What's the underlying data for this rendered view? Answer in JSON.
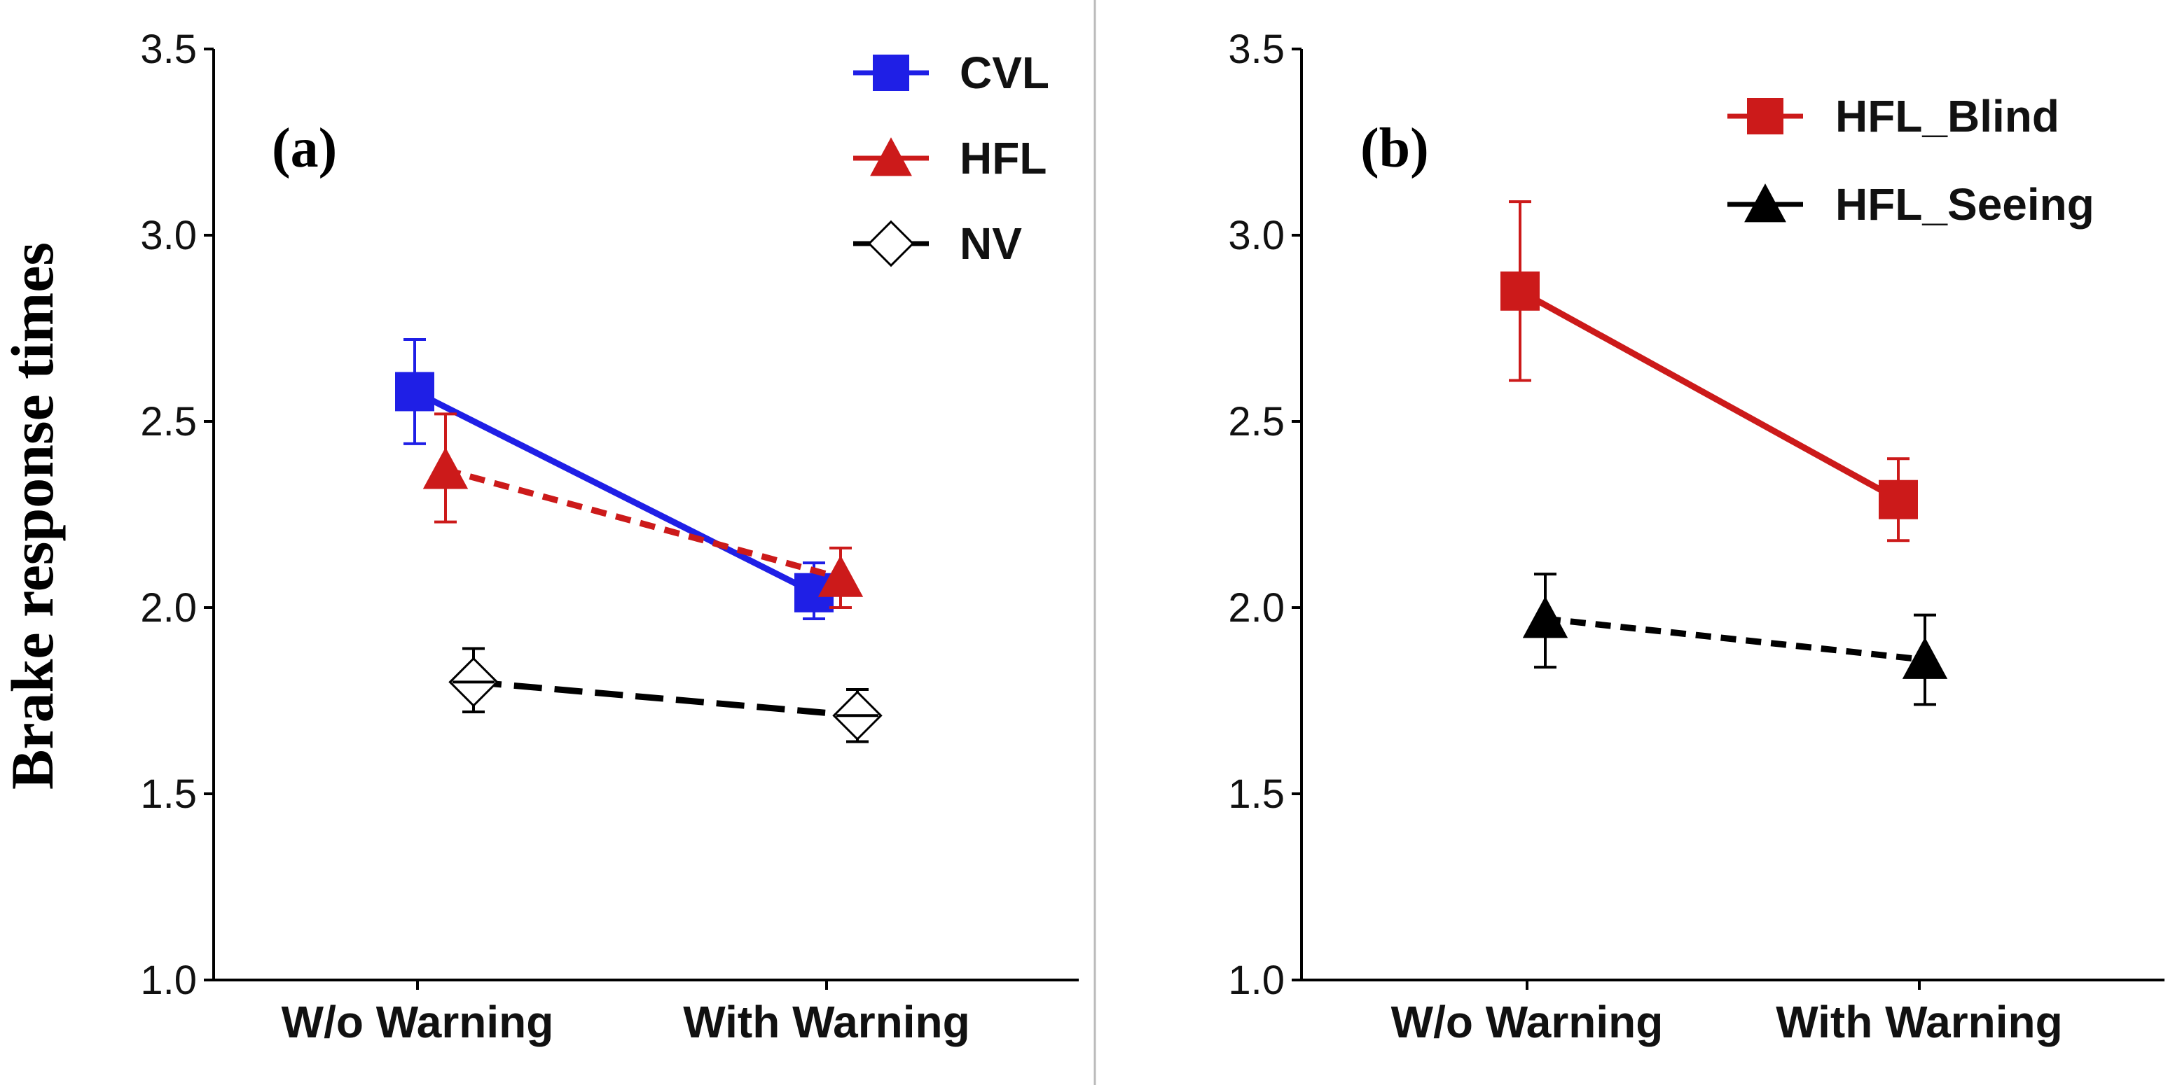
{
  "chart_data": [
    {
      "type": "line",
      "panel_label": "(a)",
      "ylabel": "Brake response times",
      "xlabel": "",
      "categories": [
        "W/o Warning",
        "With Warning"
      ],
      "ylim": [
        1.0,
        3.5
      ],
      "yticks": [
        "1.0",
        "1.5",
        "2.0",
        "2.5",
        "3.0",
        "3.5"
      ],
      "legend_position": "top-right",
      "series": [
        {
          "name": "CVL",
          "color": "#1f1fe6",
          "marker": "square",
          "line": "solid",
          "values": [
            2.58,
            2.04
          ],
          "err_low": [
            2.44,
            1.97
          ],
          "err_high": [
            2.72,
            2.12
          ]
        },
        {
          "name": "HFL",
          "color": "#cc1a1a",
          "marker": "triangle",
          "line": "dashed",
          "values": [
            2.37,
            2.08
          ],
          "err_low": [
            2.23,
            2.0
          ],
          "err_high": [
            2.52,
            2.16
          ]
        },
        {
          "name": "NV",
          "color": "#000000",
          "marker": "diamond-open",
          "line": "longdash",
          "values": [
            1.8,
            1.71
          ],
          "err_low": [
            1.72,
            1.64
          ],
          "err_high": [
            1.89,
            1.78
          ]
        }
      ]
    },
    {
      "type": "line",
      "panel_label": "(b)",
      "xlabel": "",
      "categories": [
        "W/o Warning",
        "With Warning"
      ],
      "ylim": [
        1.0,
        3.5
      ],
      "yticks": [
        "1.0",
        "1.5",
        "2.0",
        "2.5",
        "3.0",
        "3.5"
      ],
      "legend_position": "top-right",
      "series": [
        {
          "name": "HFL_Blind",
          "color": "#cc1a1a",
          "marker": "square",
          "line": "solid",
          "values": [
            2.85,
            2.29
          ],
          "err_low": [
            2.61,
            2.18
          ],
          "err_high": [
            3.09,
            2.4
          ]
        },
        {
          "name": "HFL_Seeing",
          "color": "#000000",
          "marker": "triangle",
          "line": "dashed",
          "values": [
            1.97,
            1.86
          ],
          "err_low": [
            1.84,
            1.74
          ],
          "err_high": [
            2.09,
            1.98
          ]
        }
      ]
    }
  ]
}
